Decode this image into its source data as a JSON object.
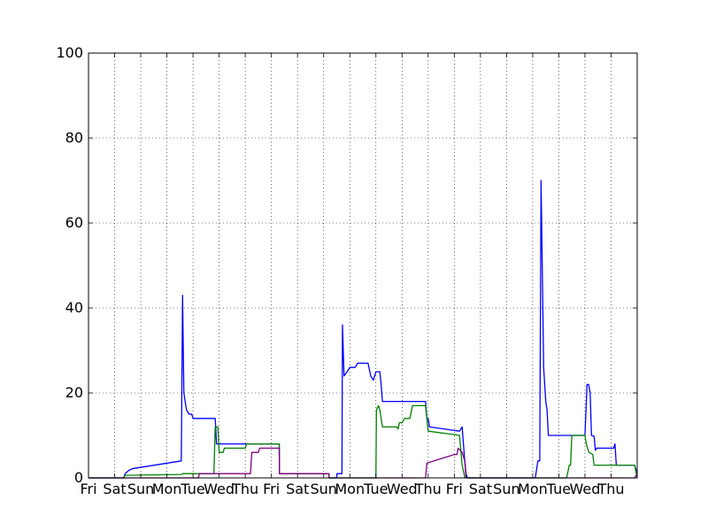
{
  "chart_data": {
    "type": "line",
    "title": "",
    "xlabel": "",
    "ylabel": "",
    "grid": true,
    "legend": "none",
    "xlim": [
      0,
      21
    ],
    "ylim": [
      0,
      100
    ],
    "yticks": [
      0,
      20,
      40,
      60,
      80,
      100
    ],
    "xtick_labels": [
      "Fri",
      "Sat",
      "Sun",
      "Mon",
      "Tue",
      "Wed",
      "Thu",
      "Fri",
      "Sat",
      "Sun",
      "Mon",
      "Tue",
      "Wed",
      "Thu",
      "Fri",
      "Sat",
      "Sun",
      "Mon",
      "Tue",
      "Wed",
      "Thu"
    ],
    "series": [
      {
        "color": "#0000ff",
        "points": [
          [
            0,
            0
          ],
          [
            1.35,
            0
          ],
          [
            1.4,
            1
          ],
          [
            1.55,
            1.8
          ],
          [
            1.7,
            2.2
          ],
          [
            3.55,
            4
          ],
          [
            3.56,
            10
          ],
          [
            3.6,
            43
          ],
          [
            3.65,
            20
          ],
          [
            3.75,
            16
          ],
          [
            3.85,
            15
          ],
          [
            3.95,
            15
          ],
          [
            4.0,
            14
          ],
          [
            4.7,
            14
          ],
          [
            4.85,
            14
          ],
          [
            4.9,
            8
          ],
          [
            5.9,
            8
          ],
          [
            7.3,
            8
          ],
          [
            7.31,
            1
          ],
          [
            9.2,
            1
          ],
          [
            9.21,
            0
          ],
          [
            9.5,
            0
          ],
          [
            9.51,
            1
          ],
          [
            9.7,
            1
          ],
          [
            9.72,
            36
          ],
          [
            9.78,
            24
          ],
          [
            9.9,
            25
          ],
          [
            10.0,
            26
          ],
          [
            10.2,
            26
          ],
          [
            10.3,
            27
          ],
          [
            10.7,
            27
          ],
          [
            10.8,
            24
          ],
          [
            10.9,
            23
          ],
          [
            11.0,
            25
          ],
          [
            11.15,
            25
          ],
          [
            11.2,
            22
          ],
          [
            11.25,
            18
          ],
          [
            12.9,
            18
          ],
          [
            12.95,
            14
          ],
          [
            13.0,
            14
          ],
          [
            13.05,
            12
          ],
          [
            14.2,
            11
          ],
          [
            14.3,
            12
          ],
          [
            14.4,
            4
          ],
          [
            14.45,
            1
          ],
          [
            14.5,
            0
          ],
          [
            17.1,
            0
          ],
          [
            17.2,
            4
          ],
          [
            17.27,
            4
          ],
          [
            17.32,
            70
          ],
          [
            17.42,
            26
          ],
          [
            17.5,
            18
          ],
          [
            17.55,
            16
          ],
          [
            17.6,
            10
          ],
          [
            19.0,
            10
          ],
          [
            19.08,
            22
          ],
          [
            19.14,
            22
          ],
          [
            19.2,
            20
          ],
          [
            19.25,
            10
          ],
          [
            19.35,
            9.8
          ],
          [
            19.4,
            6.5
          ],
          [
            19.45,
            7
          ],
          [
            20.1,
            7
          ],
          [
            20.15,
            8
          ],
          [
            20.2,
            3
          ],
          [
            20.9,
            3
          ],
          [
            21.0,
            1
          ]
        ]
      },
      {
        "color": "#008000",
        "points": [
          [
            0,
            0
          ],
          [
            1.35,
            0
          ],
          [
            1.4,
            0.6
          ],
          [
            3.55,
            0.8
          ],
          [
            3.6,
            1
          ],
          [
            4.8,
            1
          ],
          [
            4.85,
            12
          ],
          [
            4.95,
            12
          ],
          [
            5.0,
            6
          ],
          [
            5.15,
            6
          ],
          [
            5.2,
            7
          ],
          [
            6.0,
            7
          ],
          [
            6.05,
            8
          ],
          [
            7.0,
            8
          ],
          [
            7.3,
            8
          ],
          [
            7.31,
            1
          ],
          [
            9.2,
            1
          ],
          [
            9.21,
            0
          ],
          [
            11.0,
            0
          ],
          [
            11.02,
            16
          ],
          [
            11.1,
            17
          ],
          [
            11.15,
            16
          ],
          [
            11.25,
            12
          ],
          [
            11.8,
            12
          ],
          [
            11.85,
            11.5
          ],
          [
            11.9,
            13
          ],
          [
            12.0,
            13
          ],
          [
            12.1,
            14
          ],
          [
            12.3,
            14
          ],
          [
            12.4,
            17
          ],
          [
            12.9,
            17
          ],
          [
            13.0,
            11
          ],
          [
            14.0,
            10.2
          ],
          [
            14.2,
            10
          ],
          [
            14.3,
            3
          ],
          [
            14.4,
            0.2
          ],
          [
            14.5,
            0
          ],
          [
            18.3,
            0
          ],
          [
            18.4,
            3
          ],
          [
            18.45,
            3
          ],
          [
            18.5,
            10
          ],
          [
            18.9,
            10
          ],
          [
            19.0,
            10
          ],
          [
            19.05,
            8
          ],
          [
            19.15,
            6
          ],
          [
            19.3,
            5.5
          ],
          [
            19.35,
            3
          ],
          [
            20.0,
            3
          ],
          [
            20.9,
            3
          ],
          [
            21.0,
            0
          ]
        ]
      },
      {
        "color": "#800080",
        "points": [
          [
            0,
            0
          ],
          [
            4.2,
            0
          ],
          [
            4.25,
            1
          ],
          [
            6.2,
            1
          ],
          [
            6.25,
            6
          ],
          [
            6.5,
            6
          ],
          [
            6.55,
            7
          ],
          [
            7.3,
            7
          ],
          [
            7.31,
            1
          ],
          [
            9.2,
            1
          ],
          [
            9.21,
            0
          ],
          [
            12.9,
            0
          ],
          [
            12.95,
            3.5
          ],
          [
            14.0,
            5.5
          ],
          [
            14.1,
            5.5
          ],
          [
            14.15,
            7
          ],
          [
            14.3,
            6
          ],
          [
            14.35,
            5
          ],
          [
            14.4,
            4
          ],
          [
            14.45,
            0
          ],
          [
            20.8,
            0
          ],
          [
            20.9,
            0
          ],
          [
            21.0,
            1
          ]
        ]
      }
    ]
  }
}
